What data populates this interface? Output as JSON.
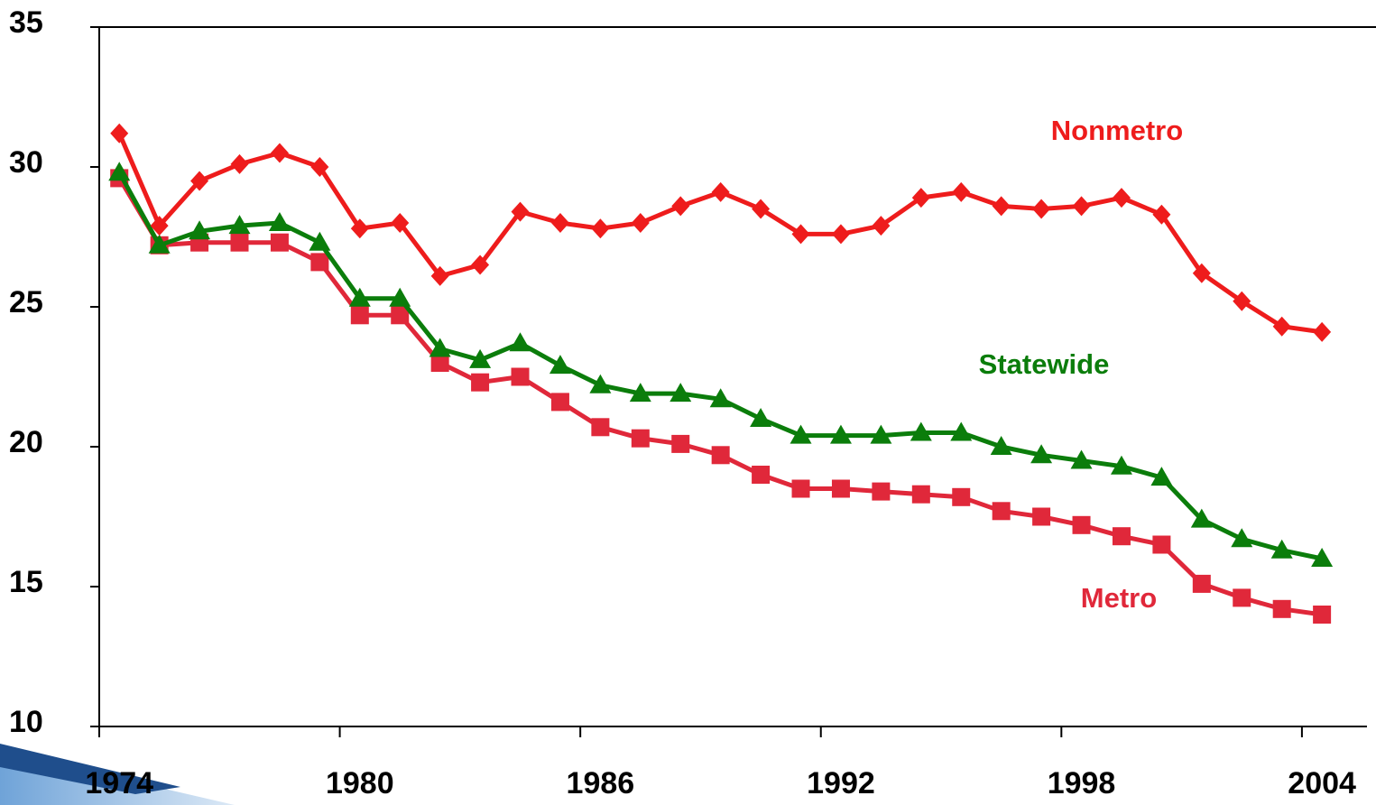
{
  "chart_data": {
    "type": "line",
    "categories": [
      "1974",
      null,
      null,
      null,
      null,
      null,
      "1980",
      null,
      null,
      null,
      null,
      null,
      "1986",
      null,
      null,
      null,
      null,
      null,
      "1992",
      null,
      null,
      null,
      null,
      null,
      "1998",
      null,
      null,
      null,
      null,
      null,
      "2004"
    ],
    "series": [
      {
        "name": "Nonmetro",
        "color": "#ee1c1c",
        "marker": "diamond",
        "values": [
          31.2,
          27.9,
          29.5,
          30.1,
          30.5,
          30.0,
          27.8,
          28.0,
          26.1,
          26.5,
          28.4,
          28.0,
          27.8,
          28.0,
          28.6,
          29.1,
          28.5,
          27.6,
          27.6,
          27.9,
          28.9,
          29.1,
          28.6,
          28.5,
          28.6,
          28.9,
          28.3,
          26.2,
          25.2,
          24.3,
          24.1
        ]
      },
      {
        "name": "Statewide",
        "color": "#0b7d0b",
        "marker": "triangle",
        "values": [
          29.8,
          27.2,
          27.7,
          27.9,
          28.0,
          27.3,
          25.3,
          25.3,
          23.5,
          23.1,
          23.7,
          22.9,
          22.2,
          21.9,
          21.9,
          21.7,
          21.0,
          20.4,
          20.4,
          20.4,
          20.5,
          20.5,
          20.0,
          19.7,
          19.5,
          19.3,
          18.9,
          17.4,
          16.7,
          16.3,
          16.0
        ]
      },
      {
        "name": "Metro",
        "color": "#e0283a",
        "marker": "square",
        "values": [
          29.6,
          27.2,
          27.3,
          27.3,
          27.3,
          26.6,
          24.7,
          24.7,
          23.0,
          22.3,
          22.5,
          21.6,
          20.7,
          20.3,
          20.1,
          19.7,
          19.0,
          18.5,
          18.5,
          18.4,
          18.3,
          18.2,
          17.7,
          17.5,
          17.2,
          16.8,
          16.5,
          15.1,
          14.6,
          14.2,
          14.0
        ]
      }
    ],
    "ylim": [
      10,
      35
    ],
    "yticks": [
      10,
      15,
      20,
      25,
      30,
      35
    ],
    "grid": false
  }
}
